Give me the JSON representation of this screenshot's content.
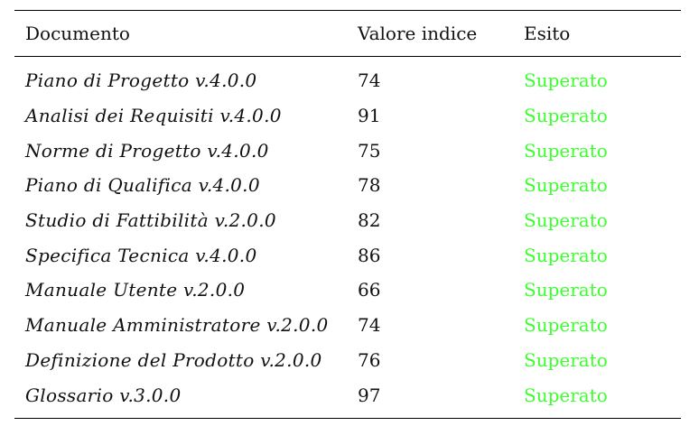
{
  "table": {
    "headers": {
      "document": "Documento",
      "index_value": "Valore indice",
      "outcome": "Esito"
    },
    "rows": [
      {
        "document": "Piano di Progetto v.4.0.0",
        "index_value": "74",
        "outcome": "Superato"
      },
      {
        "document": "Analisi dei Requisiti v.4.0.0",
        "index_value": "91",
        "outcome": "Superato"
      },
      {
        "document": "Norme di Progetto v.4.0.0",
        "index_value": "75",
        "outcome": "Superato"
      },
      {
        "document": "Piano di Qualifica v.4.0.0",
        "index_value": "78",
        "outcome": "Superato"
      },
      {
        "document": "Studio di Fattibilità v.2.0.0",
        "index_value": "82",
        "outcome": "Superato"
      },
      {
        "document": "Specifica Tecnica v.4.0.0",
        "index_value": "86",
        "outcome": "Superato"
      },
      {
        "document": "Manuale Utente v.2.0.0",
        "index_value": "66",
        "outcome": "Superato"
      },
      {
        "document": "Manuale Amministratore v.2.0.0",
        "index_value": "74",
        "outcome": "Superato"
      },
      {
        "document": "Definizione del Prodotto v.2.0.0",
        "index_value": "76",
        "outcome": "Superato"
      },
      {
        "document": "Glossario v.3.0.0",
        "index_value": "97",
        "outcome": "Superato"
      }
    ]
  },
  "colors": {
    "outcome_pass": "#3dff2f"
  }
}
